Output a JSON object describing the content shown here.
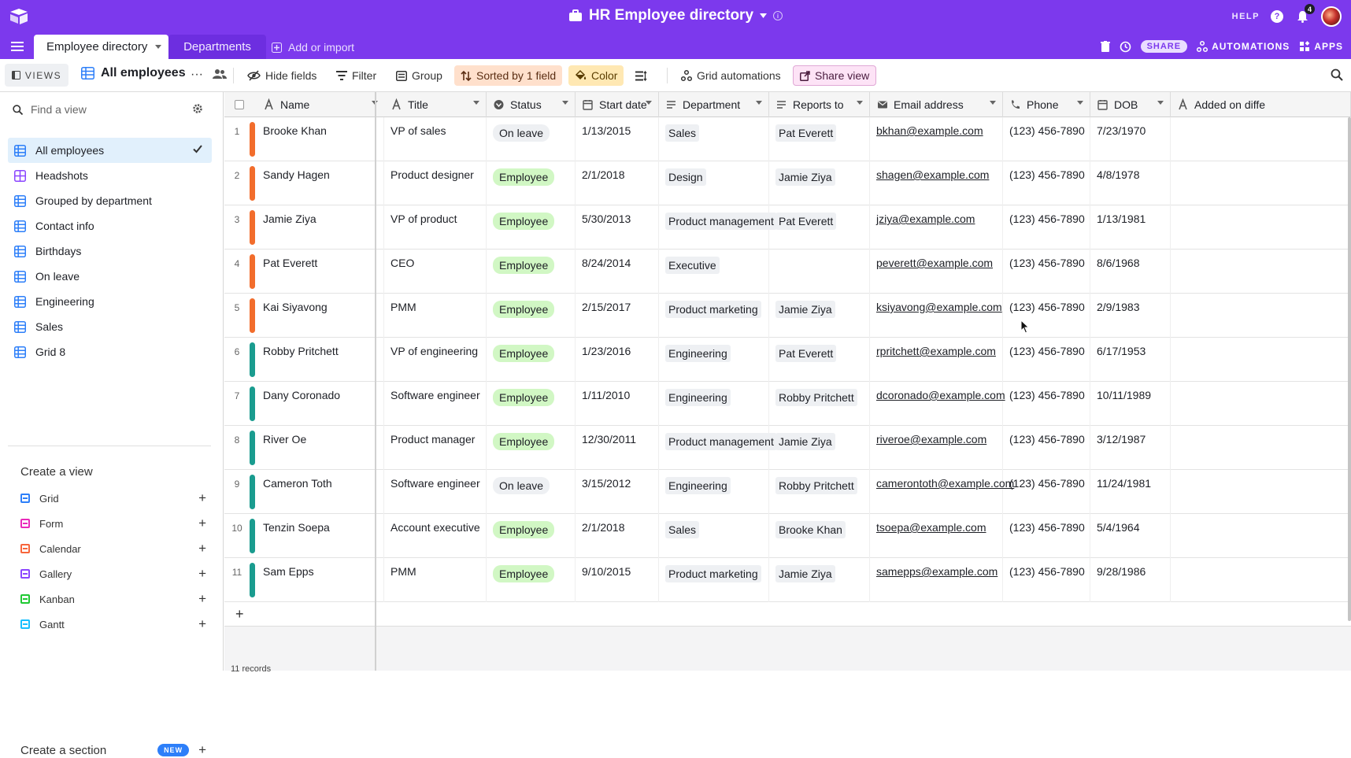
{
  "app": {
    "base_title": "HR Employee directory",
    "help": "HELP",
    "notifications_count": "4",
    "accent": "#7c39ed"
  },
  "tabs": {
    "active": "Employee directory",
    "other": "Departments",
    "add_import": "Add or import",
    "share": "SHARE",
    "automations": "AUTOMATIONS",
    "apps": "APPS"
  },
  "viewbar": {
    "views_label": "VIEWS",
    "current_view": "All employees",
    "hide_fields": "Hide fields",
    "filter": "Filter",
    "group": "Group",
    "sorted": "Sorted by 1 field",
    "color": "Color",
    "grid_automations": "Grid automations",
    "share_view": "Share view"
  },
  "sidebar": {
    "find_placeholder": "Find a view",
    "views": [
      {
        "label": "All employees",
        "icon": "grid-icon"
      },
      {
        "label": "Headshots",
        "icon": "gallery-icon"
      },
      {
        "label": "Grouped by department",
        "icon": "grid-icon"
      },
      {
        "label": "Contact info",
        "icon": "grid-icon"
      },
      {
        "label": "Birthdays",
        "icon": "grid-icon"
      },
      {
        "label": "On leave",
        "icon": "grid-icon"
      },
      {
        "label": "Engineering",
        "icon": "grid-icon"
      },
      {
        "label": "Sales",
        "icon": "grid-icon"
      },
      {
        "label": "Grid 8",
        "icon": "grid-icon"
      }
    ],
    "create_title": "Create a view",
    "create_items": [
      {
        "label": "Grid",
        "color": "#2d7ff9"
      },
      {
        "label": "Form",
        "color": "#e929ba"
      },
      {
        "label": "Calendar",
        "color": "#f7653b"
      },
      {
        "label": "Gallery",
        "color": "#8b46ff"
      },
      {
        "label": "Kanban",
        "color": "#20c933"
      },
      {
        "label": "Gantt",
        "color": "#18bfff"
      }
    ],
    "create_section": "Create a section",
    "new_badge": "NEW"
  },
  "grid": {
    "columns": [
      "Name",
      "Title",
      "Status",
      "Start date",
      "Department",
      "Reports to",
      "Email address",
      "Phone",
      "DOB",
      "Added on diffe"
    ],
    "rows": [
      {
        "num": "1",
        "stripe": "#f26d2c",
        "name": "Brooke Khan",
        "title": "VP of sales",
        "status": "On leave",
        "start": "1/13/2015",
        "dept": "Sales",
        "reports": "Pat Everett",
        "email": "bkhan@example.com",
        "phone": "(123) 456-7890",
        "dob": "7/23/1970"
      },
      {
        "num": "2",
        "stripe": "#f26d2c",
        "name": "Sandy Hagen",
        "title": "Product designer",
        "status": "Employee",
        "start": "2/1/2018",
        "dept": "Design",
        "reports": "Jamie Ziya",
        "email": "shagen@example.com",
        "phone": "(123) 456-7890",
        "dob": "4/8/1978"
      },
      {
        "num": "3",
        "stripe": "#f26d2c",
        "name": "Jamie Ziya",
        "title": "VP of product",
        "status": "Employee",
        "start": "5/30/2013",
        "dept": "Product management",
        "reports": "Pat Everett",
        "email": "jziya@example.com",
        "phone": "(123) 456-7890",
        "dob": "1/13/1981"
      },
      {
        "num": "4",
        "stripe": "#f26d2c",
        "name": "Pat Everett",
        "title": "CEO",
        "status": "Employee",
        "start": "8/24/2014",
        "dept": "Executive",
        "reports": "",
        "email": "peverett@example.com",
        "phone": "(123) 456-7890",
        "dob": "8/6/1968"
      },
      {
        "num": "5",
        "stripe": "#f26d2c",
        "name": "Kai Siyavong",
        "title": "PMM",
        "status": "Employee",
        "start": "2/15/2017",
        "dept": "Product marketing",
        "reports": "Jamie Ziya",
        "email": "ksiyavong@example.com",
        "phone": "(123) 456-7890",
        "dob": "2/9/1983"
      },
      {
        "num": "6",
        "stripe": "#1a9c8f",
        "name": "Robby Pritchett",
        "title": "VP of engineering",
        "status": "Employee",
        "start": "1/23/2016",
        "dept": "Engineering",
        "reports": "Pat Everett",
        "email": "rpritchett@example.com",
        "phone": "(123) 456-7890",
        "dob": "6/17/1953"
      },
      {
        "num": "7",
        "stripe": "#1a9c8f",
        "name": "Dany Coronado",
        "title": "Software engineer",
        "status": "Employee",
        "start": "1/11/2010",
        "dept": "Engineering",
        "reports": "Robby Pritchett",
        "email": "dcoronado@example.com",
        "phone": "(123) 456-7890",
        "dob": "10/11/1989"
      },
      {
        "num": "8",
        "stripe": "#1a9c8f",
        "name": "River Oe",
        "title": "Product manager",
        "status": "Employee",
        "start": "12/30/2011",
        "dept": "Product management",
        "reports": "Jamie Ziya",
        "email": "riveroe@example.com",
        "phone": "(123) 456-7890",
        "dob": "3/12/1987"
      },
      {
        "num": "9",
        "stripe": "#1a9c8f",
        "name": "Cameron Toth",
        "title": "Software engineer",
        "status": "On leave",
        "start": "3/15/2012",
        "dept": "Engineering",
        "reports": "Robby Pritchett",
        "email": "camerontoth@example.com",
        "phone": "(123) 456-7890",
        "dob": "11/24/1981"
      },
      {
        "num": "10",
        "stripe": "#1a9c8f",
        "name": "Tenzin Soepa",
        "title": "Account executive",
        "status": "Employee",
        "start": "2/1/2018",
        "dept": "Sales",
        "reports": "Brooke Khan",
        "email": "tsoepa@example.com",
        "phone": "(123) 456-7890",
        "dob": "5/4/1964"
      },
      {
        "num": "11",
        "stripe": "#1a9c8f",
        "name": "Sam Epps",
        "title": "PMM",
        "status": "Employee",
        "start": "9/10/2015",
        "dept": "Product marketing",
        "reports": "Jamie Ziya",
        "email": "samepps@example.com",
        "phone": "(123) 456-7890",
        "dob": "9/28/1986"
      }
    ],
    "record_count": "11 records"
  }
}
